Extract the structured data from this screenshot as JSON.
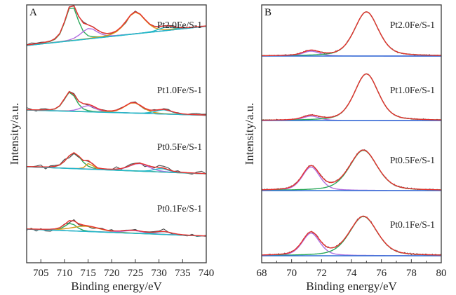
{
  "chart_data": [
    {
      "panel": "A",
      "type": "line",
      "title": "",
      "xlabel": "Binding energy/eV",
      "ylabel": "Intensity/a.u.",
      "xlim": [
        702,
        740
      ],
      "xticks": [
        705,
        710,
        715,
        720,
        725,
        730,
        735,
        740
      ],
      "yticks": [],
      "grid": false,
      "colors": {
        "raw": "#4a4a4a",
        "envelope": "#e8312f",
        "background": "#22b8c8",
        "peak1": "#2aa85a",
        "peak2": "#b070e0",
        "peak3": "#d79a1a",
        "peak4": "#22b8c8"
      },
      "series": [
        {
          "name": "Pt2.0Fe/S-1",
          "baseline_left": 0.0,
          "baseline_right": 0.55,
          "step_center": 713,
          "noise": 0.07,
          "peaks": [
            {
              "component": "peak1",
              "center": 711.5,
              "height": 1.0,
              "width": 1.6
            },
            {
              "component": "peak2",
              "center": 715.2,
              "height": 0.3,
              "width": 2.0
            },
            {
              "component": "peak3",
              "center": 725.0,
              "height": 0.62,
              "width": 2.4
            },
            {
              "component": "peak4",
              "center": 731.5,
              "height": 0.1,
              "width": 1.8
            }
          ]
        },
        {
          "name": "Pt1.0Fe/S-1",
          "baseline_left": 0.0,
          "baseline_right": -0.15,
          "step_center": 713,
          "noise": 0.08,
          "peaks": [
            {
              "component": "peak1",
              "center": 711.2,
              "height": 0.55,
              "width": 1.5
            },
            {
              "component": "peak2",
              "center": 715.0,
              "height": 0.18,
              "width": 1.8
            },
            {
              "component": "peak3",
              "center": 724.6,
              "height": 0.3,
              "width": 2.2
            },
            {
              "component": "peak4",
              "center": 731.0,
              "height": 0.12,
              "width": 2.0
            }
          ]
        },
        {
          "name": "Pt0.5Fe/S-1",
          "baseline_left": 0.0,
          "baseline_right": -0.2,
          "step_center": 713,
          "noise": 0.09,
          "peaks": [
            {
              "component": "peak1",
              "center": 712.0,
              "height": 0.45,
              "width": 1.8
            },
            {
              "component": "peak3",
              "center": 715.3,
              "height": 0.18,
              "width": 0.8
            },
            {
              "component": "peak2",
              "center": 725.8,
              "height": 0.22,
              "width": 2.4
            },
            {
              "component": "peak4",
              "center": 730.5,
              "height": 0.1,
              "width": 1.8
            }
          ]
        },
        {
          "name": "Pt0.1Fe/S-1",
          "baseline_left": 0.0,
          "baseline_right": -0.2,
          "step_center": 713,
          "noise": 0.08,
          "peaks": [
            {
              "component": "peak1",
              "center": 711.3,
              "height": 0.22,
              "width": 1.4
            },
            {
              "component": "peak3",
              "center": 714.5,
              "height": 0.15,
              "width": 3.5
            },
            {
              "component": "peak2",
              "center": 724.5,
              "height": 0.08,
              "width": 2.5
            },
            {
              "component": "peak4",
              "center": 731.0,
              "height": 0.08,
              "width": 2.0
            }
          ]
        }
      ]
    },
    {
      "panel": "B",
      "type": "line",
      "title": "",
      "xlabel": "Binding energy/eV",
      "ylabel": "Intensity/a.u.",
      "xlim": [
        68,
        80
      ],
      "xticks": [
        68,
        70,
        72,
        74,
        76,
        78,
        80
      ],
      "yticks": [],
      "grid": false,
      "colors": {
        "raw": "#4a4a4a",
        "envelope": "#e8312f",
        "background": "#2f6fd6",
        "peak1": "#b070e0",
        "peak2": "#2aa85a"
      },
      "series": [
        {
          "name": "Pt2.0Fe/S-1",
          "baseline_left": 0.0,
          "baseline_right": 0.0,
          "noise": 0.015,
          "peaks": [
            {
              "component": "peak1",
              "center": 71.3,
              "height": 0.1,
              "width": 0.65
            },
            {
              "component": "peak2",
              "center": 75.0,
              "height": 0.9,
              "width": 0.95
            }
          ]
        },
        {
          "name": "Pt1.0Fe/S-1",
          "baseline_left": 0.0,
          "baseline_right": 0.0,
          "noise": 0.015,
          "peaks": [
            {
              "component": "peak1",
              "center": 71.3,
              "height": 0.09,
              "width": 0.65
            },
            {
              "component": "peak2",
              "center": 75.0,
              "height": 0.95,
              "width": 0.95
            }
          ]
        },
        {
          "name": "Pt0.5Fe/S-1",
          "baseline_left": 0.0,
          "baseline_right": 0.0,
          "noise": 0.02,
          "peaks": [
            {
              "component": "peak1",
              "center": 71.3,
              "height": 0.48,
              "width": 0.7
            },
            {
              "component": "peak2",
              "center": 74.8,
              "height": 0.82,
              "width": 1.1
            }
          ]
        },
        {
          "name": "Pt0.1Fe/S-1",
          "baseline_left": 0.0,
          "baseline_right": 0.0,
          "noise": 0.02,
          "peaks": [
            {
              "component": "peak1",
              "center": 71.3,
              "height": 0.46,
              "width": 0.7
            },
            {
              "component": "peak2",
              "center": 74.8,
              "height": 0.8,
              "width": 1.1
            }
          ]
        }
      ]
    }
  ]
}
